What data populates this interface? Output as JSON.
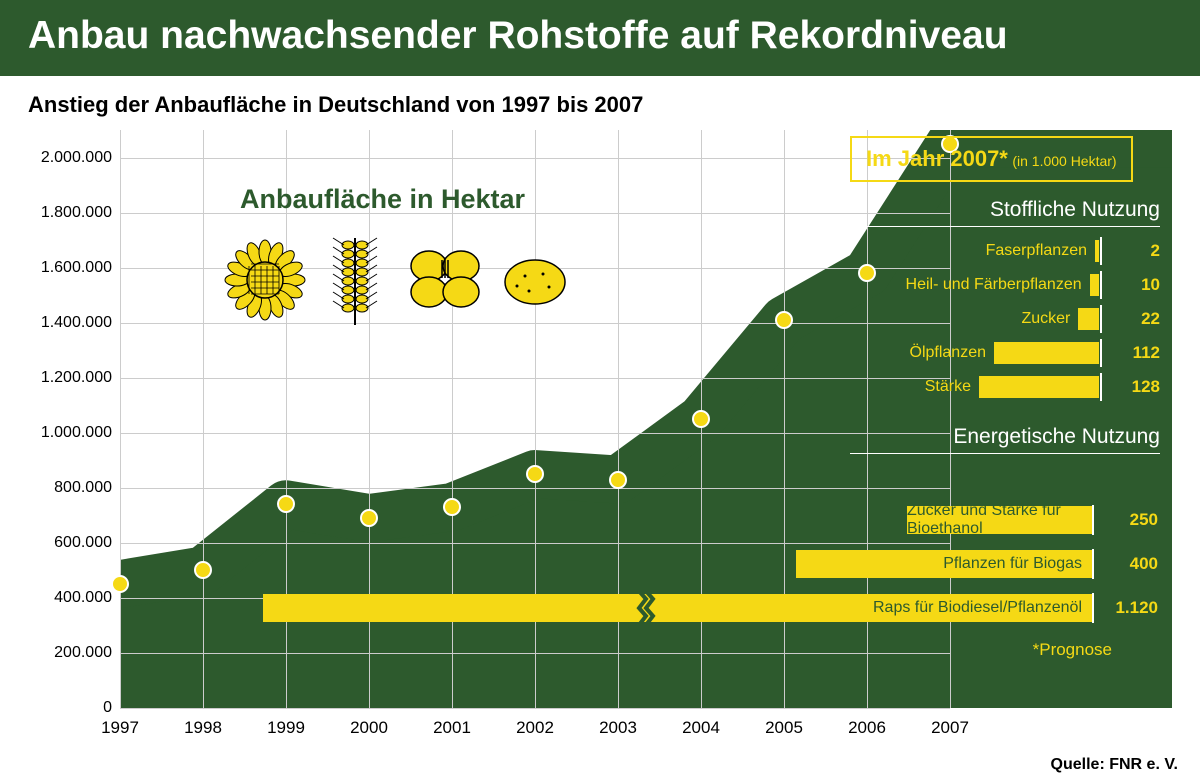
{
  "header": {
    "title": "Anbau nachwachsender Rohstoffe auf Rekordniveau"
  },
  "subtitle": "Anstieg der Anbaufläche in Deutschland von 1997 bis 2007",
  "chart": {
    "type": "area",
    "label": "Anbaufläche in Hektar",
    "x_years": [
      1997,
      1998,
      1999,
      2000,
      2001,
      2002,
      2003,
      2004,
      2005,
      2006,
      2007
    ],
    "y_values": [
      450000,
      500000,
      740000,
      690000,
      730000,
      850000,
      830000,
      1050000,
      1410000,
      1580000,
      2050000
    ],
    "y_ticks": [
      0,
      200000,
      400000,
      600000,
      800000,
      1000000,
      1200000,
      1400000,
      1600000,
      1800000,
      2000000
    ],
    "y_tick_labels": [
      "0",
      "200.000",
      "400.000",
      "600.000",
      "800.000",
      "1.000.000",
      "1.200.000",
      "1.400.000",
      "1.600.000",
      "1.800.000",
      "2.000.000"
    ],
    "ylim": [
      0,
      2100000
    ],
    "area_color": "#2d5a2d",
    "stroke_color": "#1f3f1f",
    "marker_color": "#f5d915",
    "marker_border": "#ffffff",
    "grid_color": "#cccccc",
    "background": "#ffffff",
    "line_width": 48,
    "axis_fontsize": 16
  },
  "panel": {
    "header_main": "Im Jahr 2007*",
    "header_sub": "(in 1.000 Hektar)",
    "header_border": "#f5d915",
    "section1": {
      "title": "Stoffliche Nutzung",
      "bars": [
        {
          "label": "Faserpflanzen",
          "value": 2
        },
        {
          "label": "Heil- und Färberpflanzen",
          "value": 10
        },
        {
          "label": "Zucker",
          "value": 22
        },
        {
          "label": "Ölpflanzen",
          "value": 112
        },
        {
          "label": "Stärke",
          "value": 128
        }
      ]
    },
    "section2": {
      "title": "Energetische Nutzung",
      "bars": [
        {
          "label": "Zucker und Stärke für Bioethanol",
          "value": 250
        },
        {
          "label": "Pflanzen für Biogas",
          "value": 400
        },
        {
          "label": "Raps für Biodiesel/Pflanzenöl",
          "value": 1120,
          "display": "1.120",
          "broken": true
        }
      ]
    },
    "bar_color": "#f5d915",
    "text_color": "#f5d915",
    "section_title_color": "#ffffff"
  },
  "footnote": "*Prognose",
  "source": "Quelle: FNR e. V.",
  "colors": {
    "header_bg": "#2d5a2d",
    "title_color": "#ffffff",
    "yellow": "#f5d915",
    "dark_green": "#2d5a2d"
  },
  "icons": [
    "sunflower",
    "wheat",
    "rapeseed-flower",
    "potato"
  ]
}
